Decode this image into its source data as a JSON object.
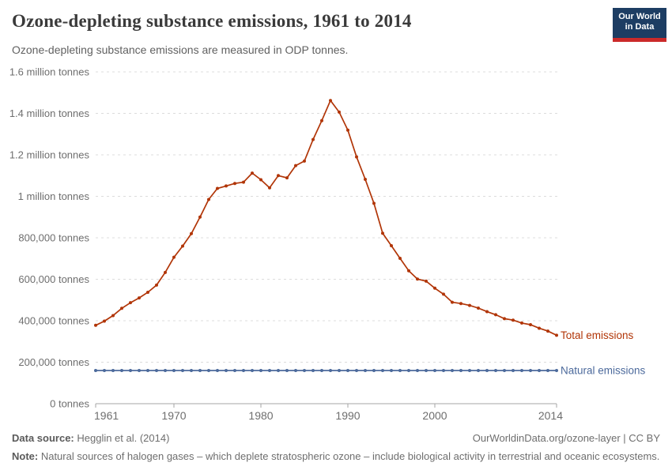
{
  "header": {
    "title": "Ozone-depleting substance emissions, 1961 to 2014",
    "subtitle": "Ozone-depleting substance emissions are measured in ODP tonnes.",
    "logo": {
      "line1": "Our World",
      "line2": "in Data",
      "bg_color": "#1d3d63",
      "bar_color": "#cb2a2a"
    }
  },
  "footer": {
    "source_label": "Data source:",
    "source_value": " Hegglin et al. (2014)",
    "link": "OurWorldinData.org/ozone-layer | CC BY",
    "note_label": "Note:",
    "note_value": " Natural sources of halogen gases – which deplete stratospheric ozone – include biological activity in terrestrial and oceanic ecosystems."
  },
  "chart_data": {
    "type": "line",
    "title": "Ozone-depleting substance emissions, 1961 to 2014",
    "xlabel": "",
    "ylabel": "ODP tonnes",
    "xlim": [
      1961,
      2014
    ],
    "ylim": [
      0,
      1600000
    ],
    "ytick_step": 200000,
    "ytick_labels": [
      "0 tonnes",
      "200,000 tonnes",
      "400,000 tonnes",
      "600,000 tonnes",
      "800,000 tonnes",
      "1 million tonnes",
      "1.2 million tonnes",
      "1.4 million tonnes",
      "1.6 million tonnes"
    ],
    "xticks": [
      1961,
      1970,
      1980,
      1990,
      2000,
      2014
    ],
    "grid": "horizontal-dashed",
    "legend_position": "right-of-line-end",
    "x": [
      1961,
      1962,
      1963,
      1964,
      1965,
      1966,
      1967,
      1968,
      1969,
      1970,
      1971,
      1972,
      1973,
      1974,
      1975,
      1976,
      1977,
      1978,
      1979,
      1980,
      1981,
      1982,
      1983,
      1984,
      1985,
      1986,
      1987,
      1988,
      1989,
      1990,
      1991,
      1992,
      1993,
      1994,
      1995,
      1996,
      1997,
      1998,
      1999,
      2000,
      2001,
      2002,
      2003,
      2004,
      2005,
      2006,
      2007,
      2008,
      2009,
      2010,
      2011,
      2012,
      2013,
      2014
    ],
    "series": [
      {
        "name": "Total emissions",
        "color": "#b13507",
        "values": [
          378000,
          398000,
          425000,
          460000,
          487000,
          510000,
          537000,
          572000,
          633000,
          706000,
          760000,
          820000,
          900000,
          985000,
          1038000,
          1050000,
          1062000,
          1068000,
          1112000,
          1080000,
          1041000,
          1100000,
          1089000,
          1148000,
          1170000,
          1274000,
          1365000,
          1462000,
          1406000,
          1319000,
          1190000,
          1082000,
          966000,
          822000,
          762000,
          701000,
          641000,
          601000,
          591000,
          557000,
          528000,
          489000,
          483000,
          474000,
          461000,
          444000,
          429000,
          410000,
          403000,
          389000,
          381000,
          364000,
          350000,
          330000
        ]
      },
      {
        "name": "Natural emissions",
        "color": "#4c6a9c",
        "values": [
          160000,
          160000,
          160000,
          160000,
          160000,
          160000,
          160000,
          160000,
          160000,
          160000,
          160000,
          160000,
          160000,
          160000,
          160000,
          160000,
          160000,
          160000,
          160000,
          160000,
          160000,
          160000,
          160000,
          160000,
          160000,
          160000,
          160000,
          160000,
          160000,
          160000,
          160000,
          160000,
          160000,
          160000,
          160000,
          160000,
          160000,
          160000,
          160000,
          160000,
          160000,
          160000,
          160000,
          160000,
          160000,
          160000,
          160000,
          160000,
          160000,
          160000,
          160000,
          160000,
          160000,
          160000
        ]
      }
    ],
    "axis_color": "#a5a5a5",
    "grid_color": "#dcdcdc",
    "tick_label_color": "#6e6e6e"
  }
}
